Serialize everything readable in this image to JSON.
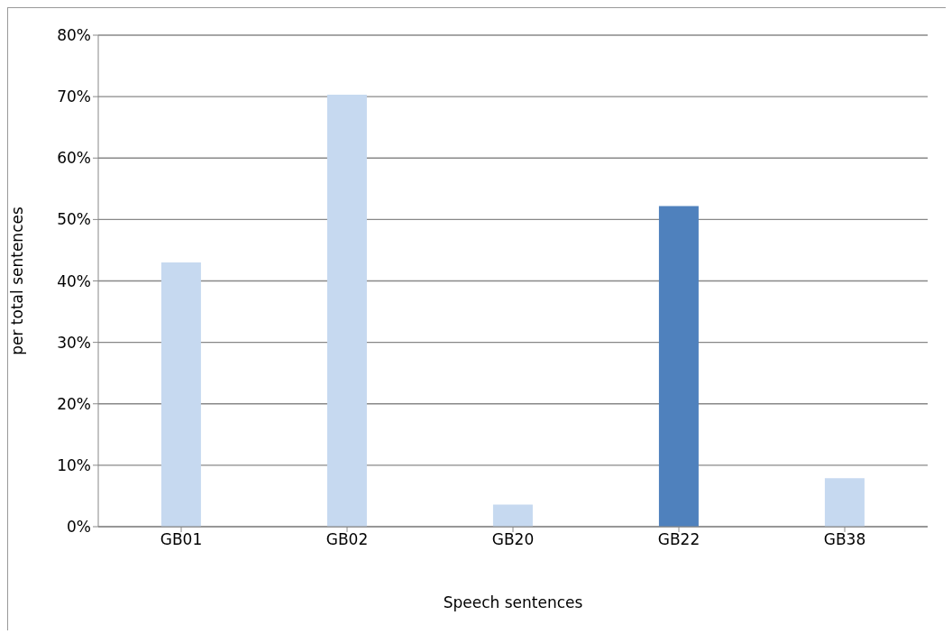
{
  "chart_data": {
    "type": "bar",
    "xlabel": "Speech sentences",
    "ylabel": "per total sentences",
    "categories": [
      "GB01",
      "GB02",
      "GB20",
      "GB22",
      "GB38"
    ],
    "values": [
      43,
      70.3,
      3.6,
      52.2,
      7.9
    ],
    "colors": [
      "#c6d9f0",
      "#c6d9f0",
      "#c6d9f0",
      "#4f81bd",
      "#c6d9f0"
    ],
    "ylim": [
      0,
      80
    ],
    "yticks": [
      {
        "value": 0,
        "label": "0%"
      },
      {
        "value": 10,
        "label": "10%"
      },
      {
        "value": 20,
        "label": "20%"
      },
      {
        "value": 30,
        "label": "30%"
      },
      {
        "value": 40,
        "label": "40%"
      },
      {
        "value": 50,
        "label": "50%"
      },
      {
        "value": 60,
        "label": "60%"
      },
      {
        "value": 70,
        "label": "70%"
      },
      {
        "value": 80,
        "label": "80%"
      }
    ],
    "grid": "y"
  }
}
